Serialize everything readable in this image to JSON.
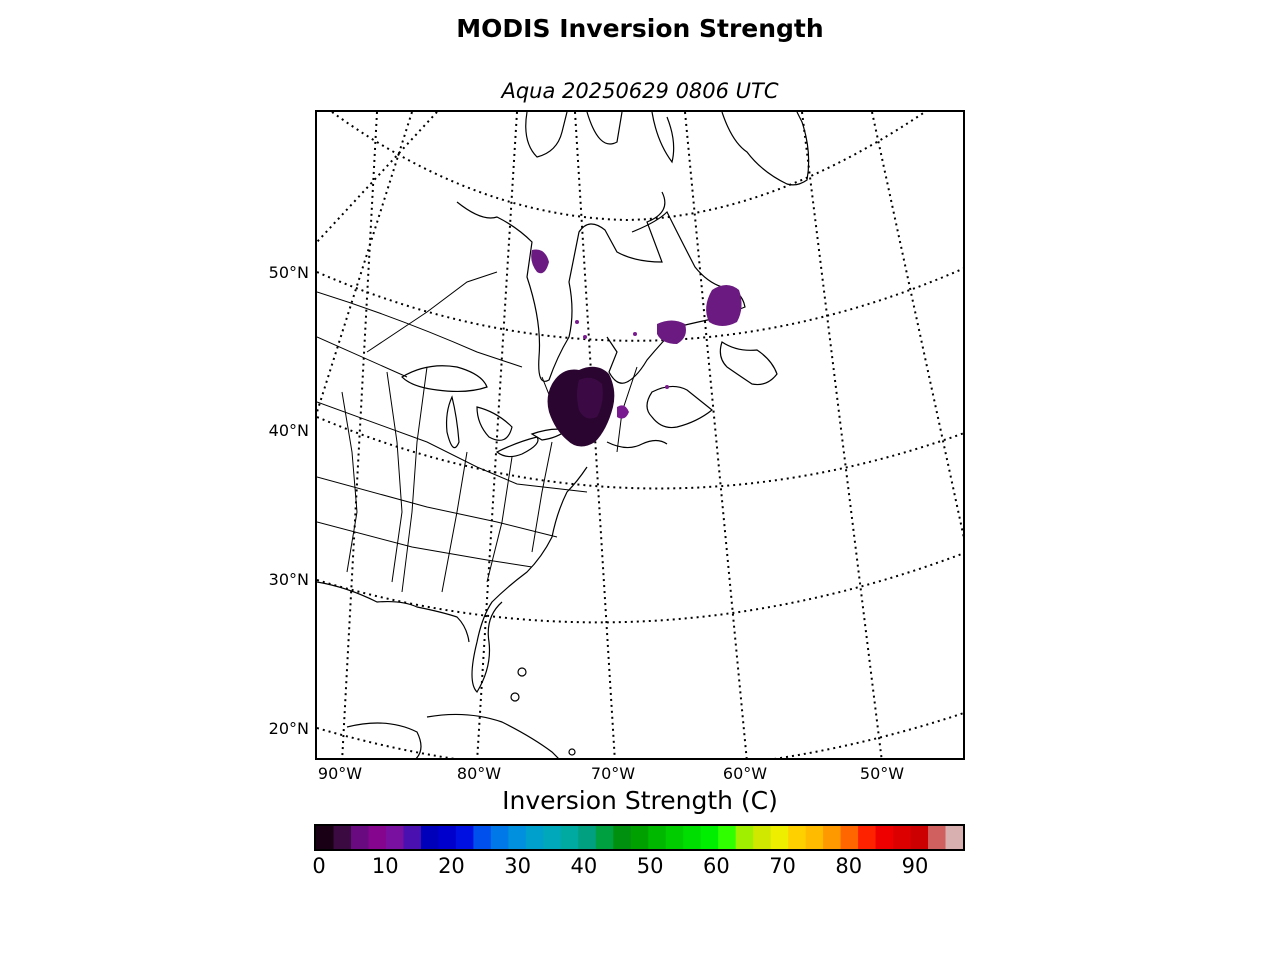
{
  "title": "MODIS Inversion Strength",
  "subtitle": "Aqua 20250629 0806 UTC",
  "lat_labels": [
    "50°N",
    "40°N",
    "30°N",
    "20°N"
  ],
  "lon_labels": [
    "90°W",
    "80°W",
    "70°W",
    "60°W",
    "50°W"
  ],
  "colorbar": {
    "label": "Inversion Strength (C)",
    "min": 0,
    "max": 98,
    "ticks": [
      "0",
      "10",
      "20",
      "30",
      "40",
      "50",
      "60",
      "70",
      "80",
      "90"
    ],
    "colors": [
      "#1a0015",
      "#3a0a40",
      "#6a0a80",
      "#86058f",
      "#7a10a0",
      "#4a10b0",
      "#0000bb",
      "#0000cc",
      "#0010e0",
      "#0050ee",
      "#0078e8",
      "#0090dd",
      "#00a0cc",
      "#00a8bb",
      "#00aaa0",
      "#00a080",
      "#00a040",
      "#009010",
      "#00a000",
      "#00b800",
      "#00cc00",
      "#00dd00",
      "#00ee00",
      "#30ff00",
      "#a0ee00",
      "#d0e800",
      "#eeee00",
      "#ffd000",
      "#ffbb00",
      "#ff9900",
      "#ff6600",
      "#ff2200",
      "#ee0000",
      "#dd0000",
      "#cc0000",
      "#d06060",
      "#d8b0b0"
    ]
  }
}
